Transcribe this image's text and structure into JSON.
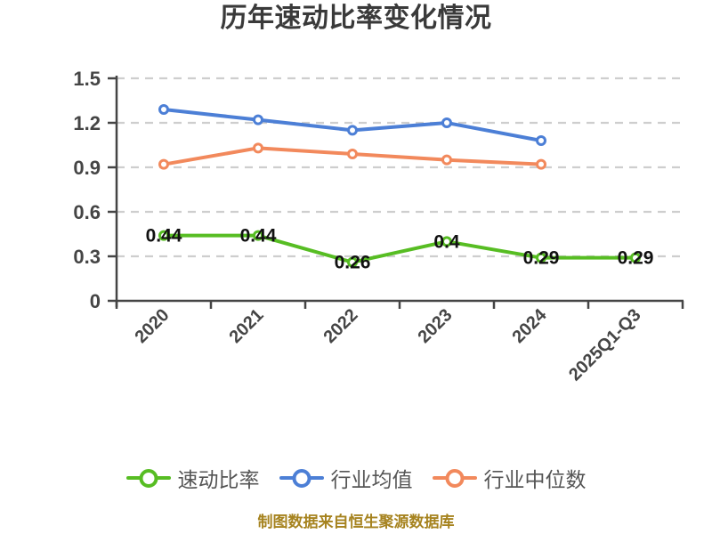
{
  "title": "历年速动比率变化情况",
  "caption": "制图数据来自恒生聚源数据库",
  "colors": {
    "quick_ratio": "#57bd23",
    "industry_avg": "#4c7fd6",
    "industry_median": "#f2895c",
    "grid": "#cecece",
    "axis": "#454545",
    "tick_label": "#454545",
    "data_label": "#111111",
    "title_text": "#3a3a3a",
    "legend_text": "#555555",
    "caption_text": "#a6831f",
    "marker_fill": "#ffffff"
  },
  "chart_data": {
    "type": "line",
    "title": "历年速动比率变化情况",
    "categories": [
      "2020",
      "2021",
      "2022",
      "2023",
      "2024",
      "2025Q1-Q3"
    ],
    "series": [
      {
        "name": "速动比率",
        "key": "quick-ratio",
        "color": "#57bd23",
        "values": [
          0.44,
          0.44,
          0.26,
          0.4,
          0.29,
          0.29
        ],
        "data_labels": true
      },
      {
        "name": "行业均值",
        "key": "industry-average",
        "color": "#4c7fd6",
        "values": [
          1.29,
          1.22,
          1.15,
          1.2,
          1.08
        ],
        "data_labels": false
      },
      {
        "name": "行业中位数",
        "key": "industry-median",
        "color": "#f2895c",
        "values": [
          0.92,
          1.03,
          0.99,
          0.95,
          0.92
        ],
        "data_labels": false
      }
    ],
    "xlabel": "",
    "ylabel": "",
    "ylim": [
      0,
      1.5
    ],
    "yticks": [
      0,
      0.3,
      0.6,
      0.9,
      1.2,
      1.5
    ],
    "ytick_labels": [
      "0",
      "0.3",
      "0.6",
      "0.9",
      "1.2",
      "1.5"
    ],
    "grid": "horizontal-dashed",
    "x_tick_rotation": 45,
    "marker": "circle-white-fill",
    "legend_position": "bottom"
  }
}
